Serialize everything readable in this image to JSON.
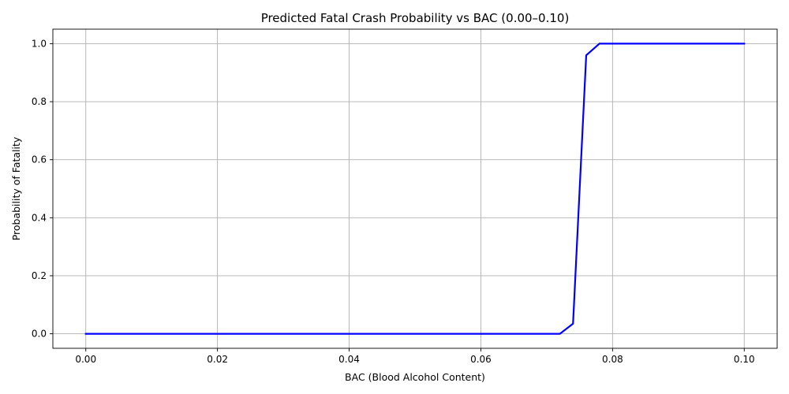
{
  "chart_data": {
    "type": "line",
    "title": "Predicted Fatal Crash Probability vs BAC (0.00–0.10)",
    "xlabel": "BAC (Blood Alcohol Content)",
    "ylabel": "Probability of Fatality",
    "xlim": [
      -0.005,
      0.105
    ],
    "ylim": [
      -0.05,
      1.05
    ],
    "xticks": [
      "0.00",
      "0.02",
      "0.04",
      "0.06",
      "0.08",
      "0.10"
    ],
    "yticks": [
      "0.0",
      "0.2",
      "0.4",
      "0.6",
      "0.8",
      "1.0"
    ],
    "grid": true,
    "series": [
      {
        "color": "#0000ff",
        "x": [
          0.0,
          0.01,
          0.02,
          0.03,
          0.04,
          0.05,
          0.06,
          0.07,
          0.072,
          0.074,
          0.076,
          0.078,
          0.08,
          0.09,
          0.1
        ],
        "y": [
          0.0,
          0.0,
          0.0,
          0.0,
          0.0,
          0.0,
          0.0,
          0.0,
          0.0,
          0.035,
          0.96,
          1.0,
          1.0,
          1.0,
          1.0
        ]
      }
    ]
  }
}
